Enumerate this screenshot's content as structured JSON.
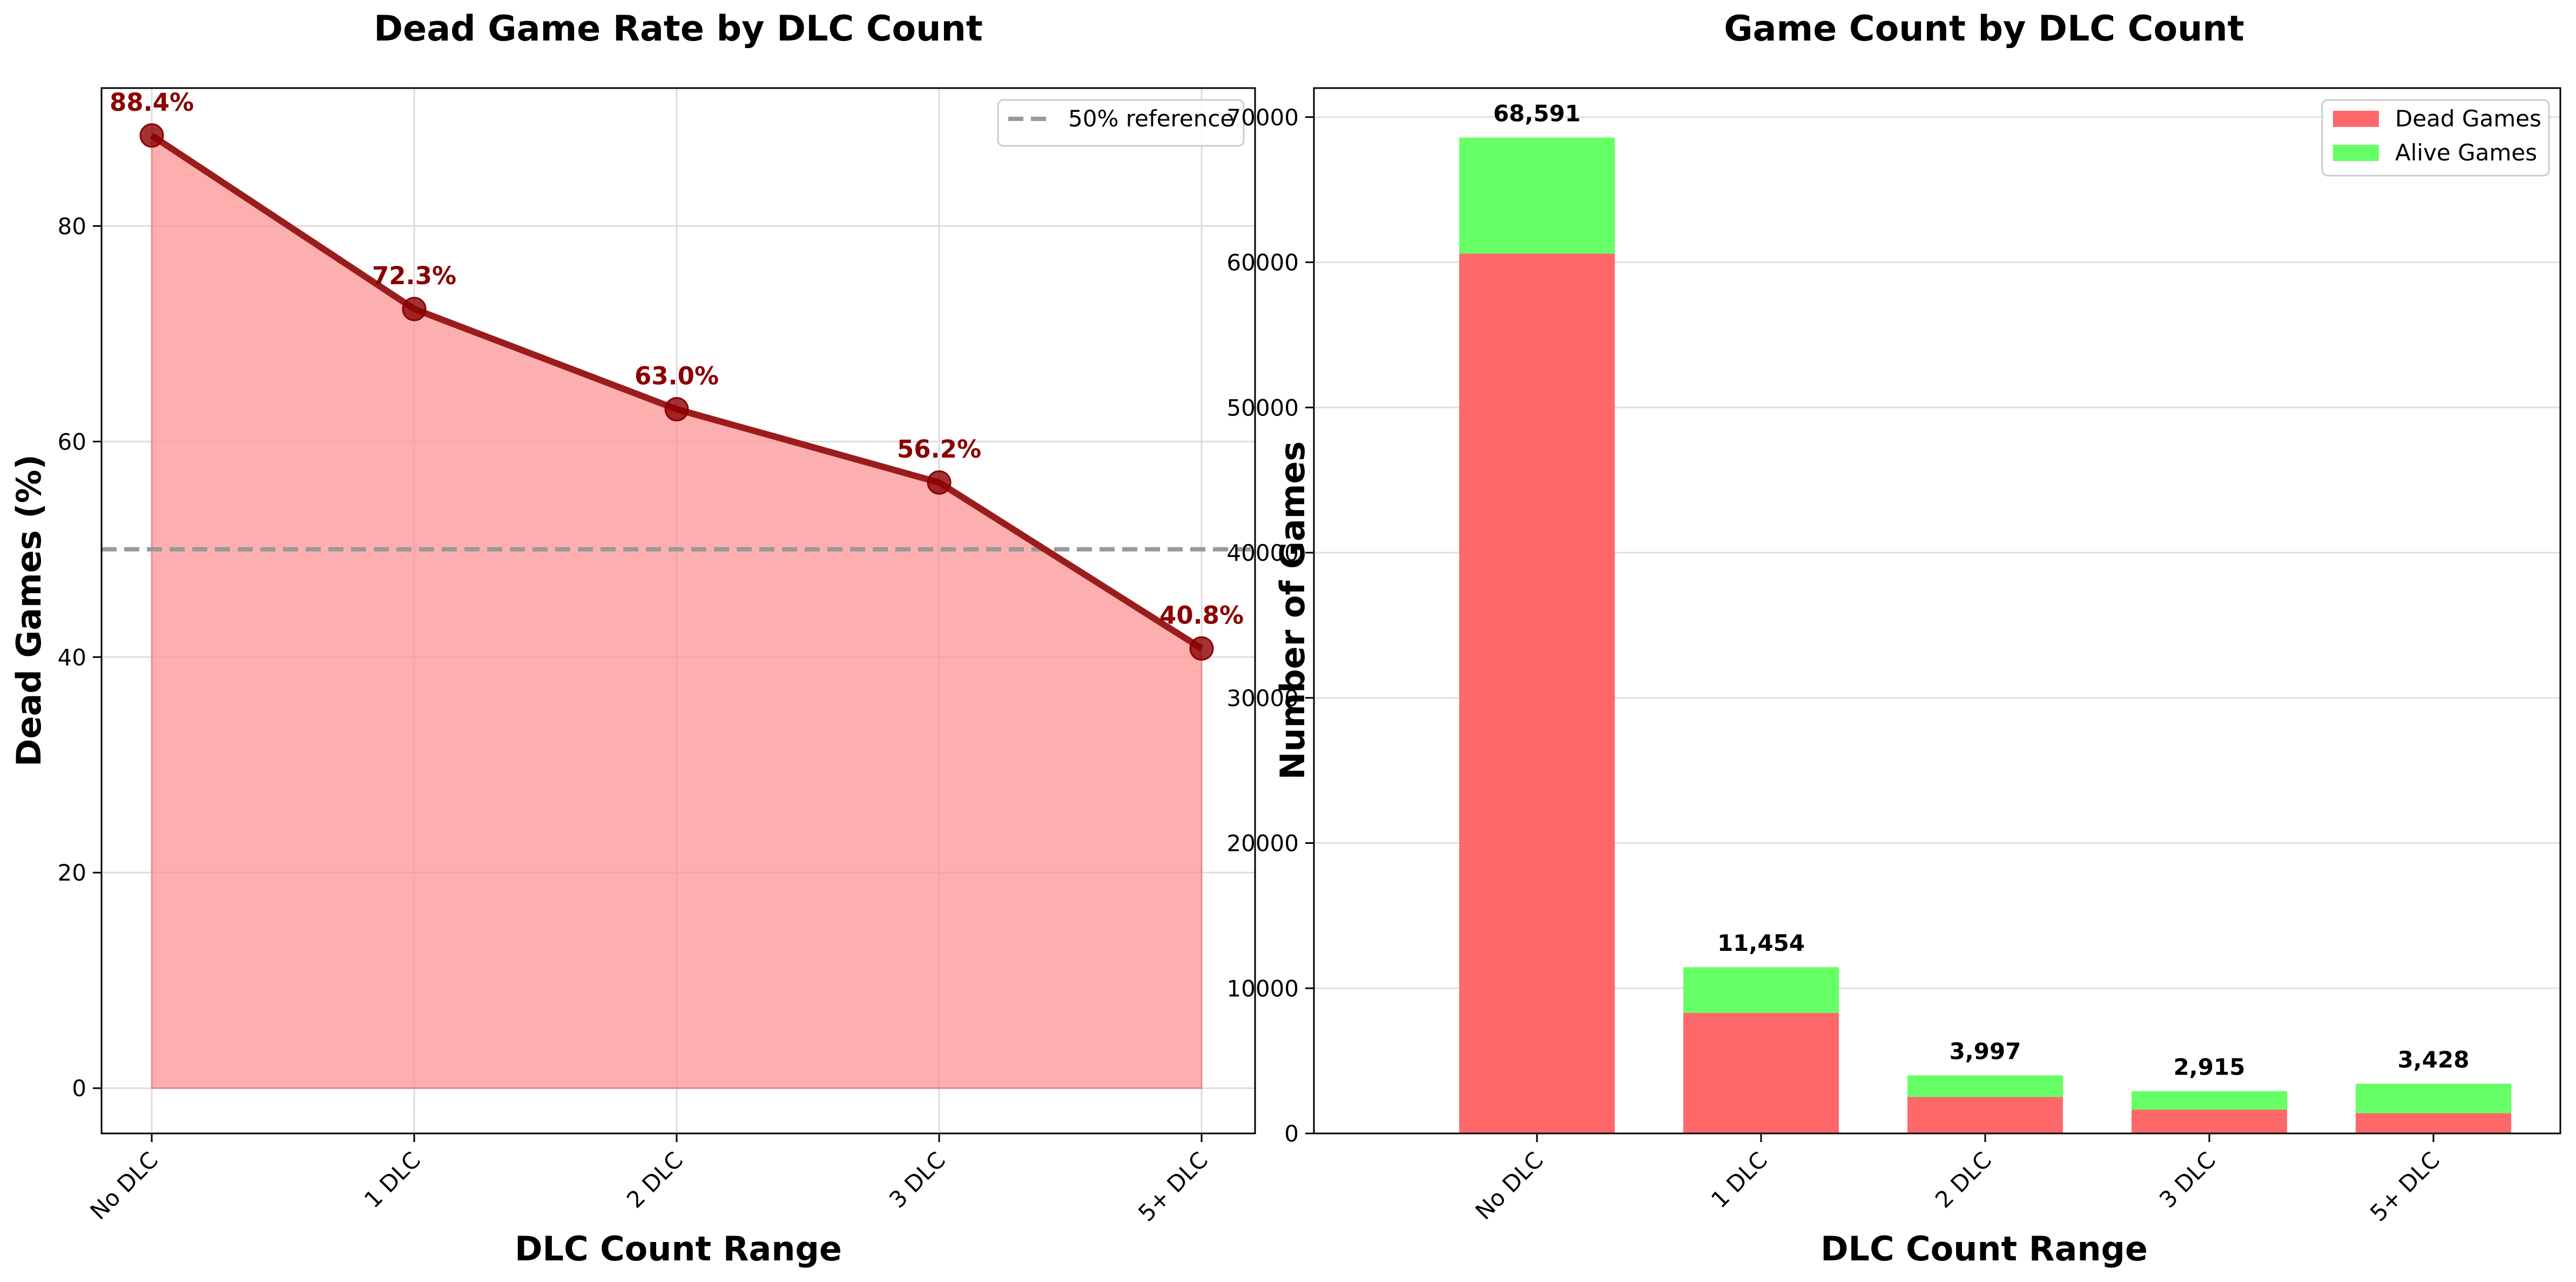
{
  "chart_data": [
    {
      "type": "line",
      "title": "Dead Game Rate by DLC Count",
      "xlabel": "DLC Count Range",
      "ylabel": "Dead Games (%)",
      "categories": [
        "No DLC",
        "1 DLC",
        "2 DLC",
        "3 DLC",
        "5+ DLC"
      ],
      "series": [
        {
          "values": [
            88.4,
            72.3,
            63.0,
            56.2,
            40.8
          ]
        }
      ],
      "data_labels": [
        "88.4%",
        "72.3%",
        "63.0%",
        "56.2%",
        "40.8%"
      ],
      "fill_area": true,
      "reference_line": {
        "value": 50,
        "label": "50% reference"
      },
      "ylim": [
        -4.2,
        92.8
      ],
      "yticks": [
        0,
        20,
        40,
        60,
        80
      ],
      "grid": true,
      "legend_position": "top-right",
      "colors": {
        "line": "#9b1c1c",
        "marker": "#8b0000",
        "fill": "#fc8d8d",
        "label": "#8b0000",
        "reference": "#999999"
      }
    },
    {
      "type": "bar",
      "stacked": true,
      "title": "Game Count by DLC Count",
      "xlabel": "DLC Count Range",
      "ylabel": "Number of Games",
      "categories": [
        "No DLC",
        "1 DLC",
        "2 DLC",
        "3 DLC",
        "5+ DLC"
      ],
      "series": [
        {
          "name": "Dead Games",
          "values": [
            60600,
            8300,
            2520,
            1640,
            1400
          ],
          "color": "#ff6868"
        },
        {
          "name": "Alive Games",
          "values": [
            7991,
            3154,
            1477,
            1275,
            2028
          ],
          "color": "#66ff66"
        }
      ],
      "totals": [
        68591,
        11454,
        3997,
        2915,
        3428
      ],
      "total_labels": [
        "68,591",
        "11,454",
        "3,997",
        "2,915",
        "3,428"
      ],
      "ylim": [
        0,
        72000
      ],
      "yticks": [
        0,
        10000,
        20000,
        30000,
        40000,
        50000,
        60000,
        70000
      ],
      "grid": true,
      "legend_position": "top-right"
    }
  ]
}
